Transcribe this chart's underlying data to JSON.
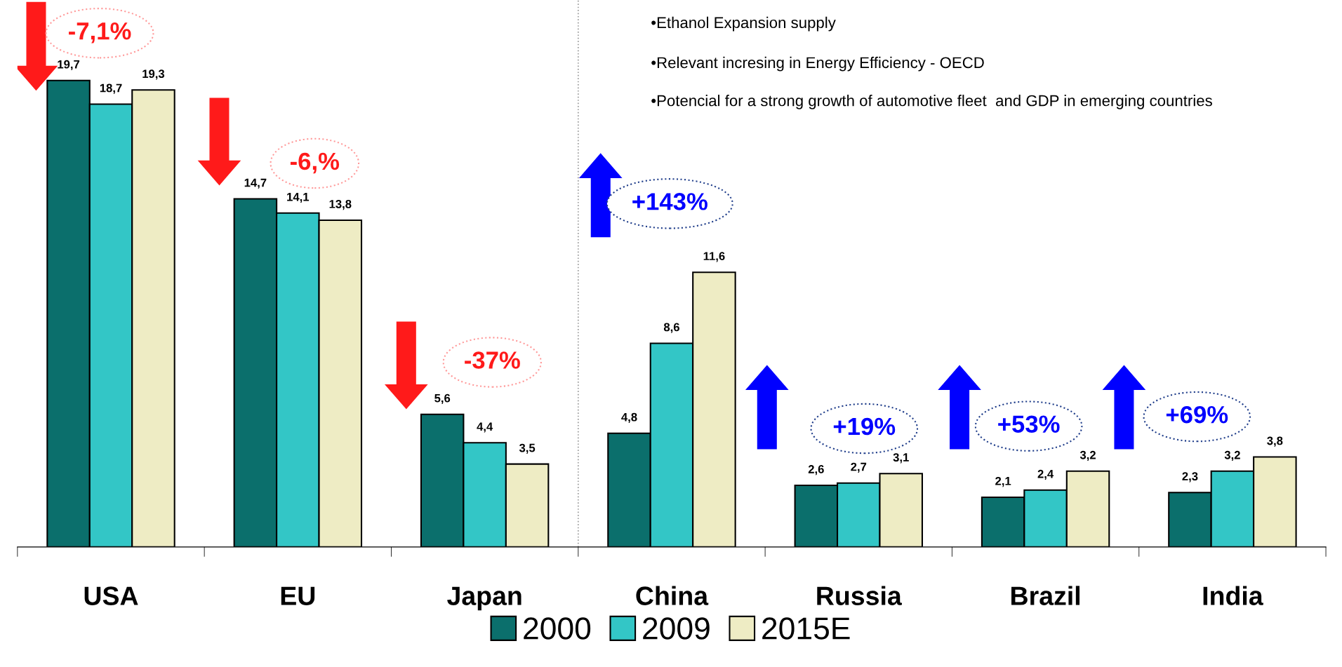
{
  "chart_data": {
    "type": "bar",
    "categories": [
      "USA",
      "EU",
      "Japan",
      "China",
      "Russia",
      "Brazil",
      "India"
    ],
    "series": [
      {
        "name": "2000",
        "color": "#0b6f6c",
        "values": [
          19.7,
          14.7,
          5.6,
          4.8,
          2.6,
          2.1,
          2.3
        ],
        "value_labels": [
          "19,7",
          "14,7",
          "5,6",
          "4,8",
          "2,6",
          "2,1",
          "2,3"
        ]
      },
      {
        "name": "2009",
        "color": "#33c6c6",
        "values": [
          18.7,
          14.1,
          4.4,
          8.6,
          2.7,
          2.4,
          3.2
        ],
        "value_labels": [
          "18,7",
          "14,1",
          "4,4",
          "8,6",
          "2,7",
          "2,4",
          "3,2"
        ]
      },
      {
        "name": "2015E",
        "color": "#eeecc4",
        "values": [
          19.3,
          13.8,
          3.5,
          11.6,
          3.1,
          3.2,
          3.8
        ],
        "value_labels": [
          "19,3",
          "13,8",
          "3,5",
          "11,6",
          "3,1",
          "3,2",
          "3,8"
        ]
      }
    ],
    "ylim": [
      0,
      23.1
    ],
    "tick_labels": "x",
    "legend": "bottom",
    "grid": false,
    "annotations": [
      "-7,1%",
      "-6,%",
      "-37%",
      "+143%",
      "+19%",
      "+53%",
      "+69%",
      "•Ethanol Expansion supply",
      "•Relevant incresing in Energy Efficiency - OECD",
      "•Potencial for a strong growth of automotive fleet  and GDP in emerging countries"
    ]
  }
}
